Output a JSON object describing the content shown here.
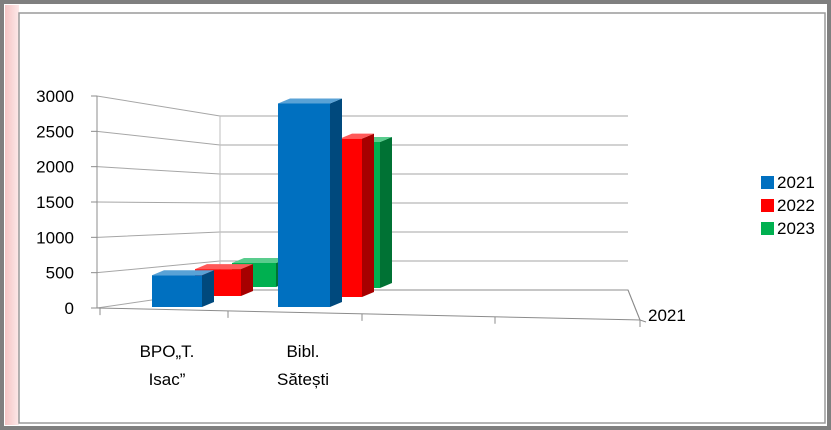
{
  "chart_data": {
    "type": "bar",
    "style": "3d-clustered-column",
    "categories": [
      "BPO„T. Isac”",
      "Bibl. Sătești"
    ],
    "category_lines": [
      [
        "BPO„T.",
        "Isac”"
      ],
      [
        "Bibl.",
        "Sătești"
      ]
    ],
    "series": [
      {
        "name": "2021",
        "color": "#0070C0",
        "values": [
          450,
          2880
        ]
      },
      {
        "name": "2022",
        "color": "#FF0000",
        "values": [
          380,
          2310
        ]
      },
      {
        "name": "2023",
        "color": "#00B050",
        "values": [
          340,
          2130
        ]
      }
    ],
    "depth_label": "2021",
    "yticks": [
      0,
      500,
      1000,
      1500,
      2000,
      2500,
      3000
    ],
    "ylim": [
      0,
      3000
    ],
    "legend_position": "right",
    "grid": true
  }
}
